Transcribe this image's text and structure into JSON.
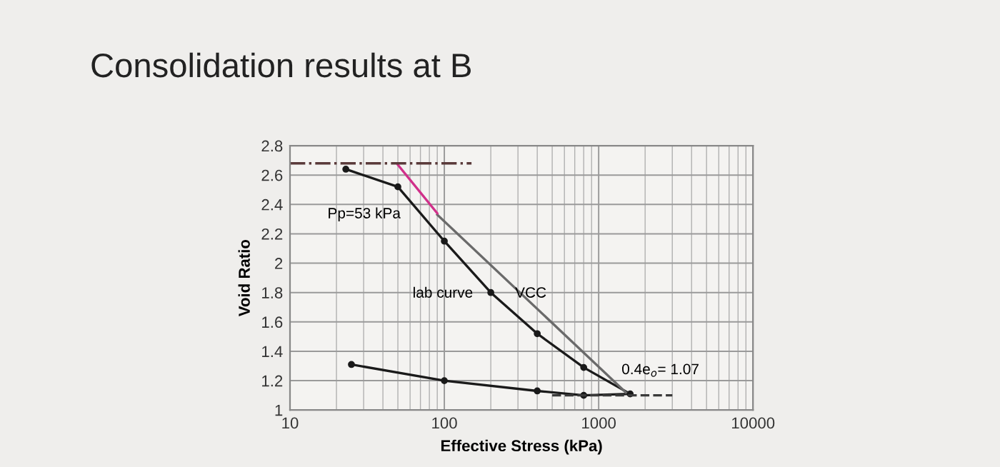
{
  "chart_data": {
    "type": "line",
    "title": "Consolidation results at B",
    "xlabel": "Effective Stress (kPa)",
    "ylabel": "Void Ratio",
    "log": "x",
    "xlim": [
      10,
      10000
    ],
    "xticks": [
      10,
      100,
      1000,
      10000
    ],
    "ylim": [
      1,
      2.8
    ],
    "yticks": [
      1,
      1.2,
      1.4,
      1.6,
      1.8,
      2,
      2.2,
      2.4,
      2.6,
      2.8
    ],
    "grid": true,
    "marker": "circle",
    "series": [
      {
        "color": "#1a1a1a",
        "x": [
          23,
          50,
          100,
          200,
          400,
          800,
          1600,
          800,
          400,
          100,
          25
        ],
        "values": [
          2.64,
          2.52,
          2.15,
          1.8,
          1.52,
          1.29,
          1.11,
          1.1,
          1.13,
          1.2,
          1.31
        ]
      },
      {
        "color": "#6a6a6a",
        "marker": "none",
        "x": [
          90,
          1500
        ],
        "values": [
          2.33,
          1.12
        ]
      },
      {
        "color": "#d0308a",
        "marker": "none",
        "x": [
          50,
          90
        ],
        "values": [
          2.67,
          2.34
        ]
      },
      {
        "color": "#5a3a3a",
        "marker": "none",
        "line_style": "dashdot",
        "x": [
          10,
          150
        ],
        "values": [
          2.68,
          2.68
        ]
      },
      {
        "color": "#3a3a3a",
        "marker": "none",
        "line_style": "dashed",
        "x": [
          500,
          3000
        ],
        "values": [
          1.1,
          1.1
        ]
      }
    ],
    "annotations": [
      "Pp=53 kPa",
      "lab curve",
      "VCC",
      "0.4e$_{o}$= 1.07"
    ]
  }
}
